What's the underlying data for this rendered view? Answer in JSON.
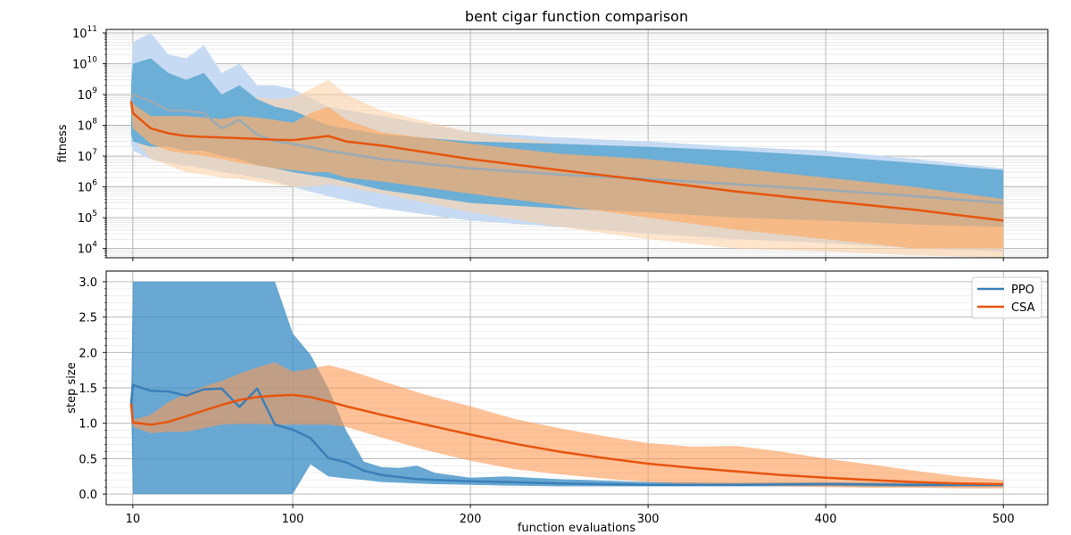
{
  "chart_data": [
    {
      "type": "line",
      "title": "bent cigar function comparison",
      "ylabel": "fitness",
      "xlabel": "",
      "yscale": "log",
      "xlim": [
        -5,
        525
      ],
      "ylim": [
        5000,
        130000000000
      ],
      "yticks": [
        {
          "value": 10000,
          "base": "10",
          "exp": "4"
        },
        {
          "value": 100000,
          "base": "10",
          "exp": "5"
        },
        {
          "value": 1000000,
          "base": "10",
          "exp": "6"
        },
        {
          "value": 10000000,
          "base": "10",
          "exp": "7"
        },
        {
          "value": 100000000,
          "base": "10",
          "exp": "8"
        },
        {
          "value": 1000000000,
          "base": "10",
          "exp": "9"
        },
        {
          "value": 10000000000,
          "base": "10",
          "exp": "10"
        },
        {
          "value": 100000000000,
          "base": "10",
          "exp": "11"
        }
      ],
      "xticks": [
        10,
        100,
        200,
        300,
        400,
        500
      ],
      "grid": true,
      "series": [
        {
          "name": "PPO",
          "color": "#3a7fb8",
          "x": [
            9,
            10,
            20,
            30,
            40,
            50,
            60,
            70,
            80,
            90,
            100,
            120,
            150,
            200,
            250,
            300,
            350,
            400,
            450,
            500
          ],
          "y": [
            600000000,
            1000000000,
            600000000,
            300000000,
            300000000,
            250000000,
            80000000,
            150000000,
            50000000,
            30000000,
            25000000,
            15000000,
            8000000,
            4000000,
            2500000,
            1800000,
            1200000,
            800000,
            500000,
            300000
          ],
          "band_inner": {
            "lower": [
              50000000,
              30000000,
              20000000,
              20000000,
              15000000,
              15000000,
              10000000,
              8000000,
              5000000,
              4000000,
              3000000,
              2000000,
              800000,
              300000,
              200000,
              150000,
              100000,
              80000,
              60000,
              50000
            ],
            "upper": [
              2000000000,
              10000000000,
              15000000000,
              5000000000,
              3000000000,
              5000000000,
              1000000000,
              2000000000,
              700000000,
              400000000,
              300000000,
              100000000,
              50000000,
              30000000,
              25000000,
              20000000,
              15000000,
              10000000,
              6000000,
              3500000
            ]
          },
          "band_outer": {
            "lower": [
              25000000,
              15000000,
              8000000,
              6000000,
              5000000,
              4000000,
              3000000,
              2500000,
              2000000,
              1500000,
              1000000,
              500000,
              200000,
              80000,
              50000,
              30000,
              20000,
              15000,
              10000,
              8000
            ],
            "upper": [
              5000000000,
              50000000000,
              100000000000,
              20000000000,
              15000000000,
              40000000000,
              5000000000,
              10000000000,
              2000000000,
              2000000000,
              1500000000,
              400000000,
              200000000,
              60000000,
              40000000,
              30000000,
              20000000,
              15000000,
              8000000,
              4000000
            ]
          }
        },
        {
          "name": "CSA",
          "color": "#e6550d",
          "x": [
            9,
            10,
            20,
            30,
            40,
            50,
            60,
            70,
            80,
            90,
            100,
            110,
            120,
            130,
            150,
            200,
            250,
            300,
            350,
            400,
            450,
            500
          ],
          "y": [
            600000000,
            250000000,
            80000000,
            55000000,
            45000000,
            42000000,
            40000000,
            38000000,
            36000000,
            34000000,
            33000000,
            38000000,
            45000000,
            30000000,
            22000000,
            8000000,
            3500000,
            1600000,
            700000,
            350000,
            180000,
            80000
          ],
          "band_inner": {
            "lower": [
              300000000,
              80000000,
              25000000,
              15000000,
              12000000,
              10000000,
              8000000,
              6000000,
              5000000,
              4000000,
              3500000,
              3000000,
              3000000,
              2000000,
              1500000,
              600000,
              250000,
              100000,
              40000,
              20000,
              10000,
              10000
            ],
            "upper": [
              1000000000,
              500000000,
              200000000,
              200000000,
              200000000,
              180000000,
              160000000,
              200000000,
              180000000,
              150000000,
              120000000,
              250000000,
              400000000,
              150000000,
              60000000,
              25000000,
              12000000,
              8000000,
              4000000,
              2000000,
              1000000,
              400000
            ]
          },
          "band_outer": {
            "lower": [
              200000000,
              40000000,
              8000000,
              5000000,
              3000000,
              2500000,
              2000000,
              1800000,
              1500000,
              1200000,
              1000000,
              1000000,
              1200000,
              1000000,
              600000,
              150000,
              50000,
              20000,
              10000,
              8000,
              6000,
              5000
            ],
            "upper": [
              1500000000,
              1200000000,
              700000000,
              600000000,
              800000000,
              700000000,
              600000000,
              900000000,
              800000000,
              700000000,
              800000000,
              1500000000,
              3000000000,
              1000000000,
              300000000,
              60000000,
              25000000,
              15000000,
              8000000,
              4000000,
              2000000,
              800000
            ]
          }
        }
      ]
    },
    {
      "type": "line",
      "title": "",
      "ylabel": "step size",
      "xlabel": "function evaluations",
      "yscale": "linear",
      "xlim": [
        -5,
        525
      ],
      "ylim": [
        -0.15,
        3.15
      ],
      "yticks": [
        "0.0",
        "0.5",
        "1.0",
        "1.5",
        "2.0",
        "2.5",
        "3.0"
      ],
      "xticks": [
        10,
        100,
        200,
        300,
        400,
        500
      ],
      "grid": true,
      "legend": "top-right",
      "series": [
        {
          "name": "PPO",
          "color": "#3a7fb8",
          "x": [
            9,
            10,
            20,
            30,
            40,
            50,
            60,
            70,
            80,
            90,
            100,
            110,
            120,
            130,
            140,
            150,
            160,
            170,
            180,
            200,
            220,
            250,
            300,
            350,
            400,
            450,
            500
          ],
          "y": [
            1.28,
            1.54,
            1.46,
            1.45,
            1.39,
            1.48,
            1.49,
            1.23,
            1.49,
            0.98,
            0.91,
            0.79,
            0.51,
            0.45,
            0.33,
            0.27,
            0.24,
            0.21,
            0.2,
            0.18,
            0.17,
            0.15,
            0.13,
            0.13,
            0.14,
            0.13,
            0.13
          ],
          "band": {
            "lower": [
              1.28,
              0.0,
              0.0,
              0.0,
              0.0,
              0.0,
              0.0,
              0.0,
              0.0,
              0.0,
              0.0,
              0.42,
              0.25,
              0.22,
              0.2,
              0.17,
              0.16,
              0.15,
              0.14,
              0.13,
              0.12,
              0.11,
              0.11,
              0.11,
              0.11,
              0.1,
              0.1
            ],
            "upper": [
              1.28,
              3.0,
              3.0,
              3.0,
              3.0,
              3.0,
              3.0,
              3.0,
              3.0,
              3.0,
              2.27,
              1.97,
              1.5,
              0.9,
              0.46,
              0.38,
              0.37,
              0.4,
              0.3,
              0.23,
              0.25,
              0.21,
              0.17,
              0.16,
              0.17,
              0.16,
              0.15
            ]
          }
        },
        {
          "name": "CSA",
          "color": "#e6550d",
          "x": [
            9,
            10,
            20,
            30,
            40,
            50,
            60,
            70,
            80,
            90,
            100,
            110,
            120,
            130,
            150,
            175,
            200,
            225,
            250,
            275,
            300,
            325,
            350,
            375,
            400,
            425,
            450,
            475,
            500
          ],
          "y": [
            1.28,
            1.01,
            0.98,
            1.02,
            1.1,
            1.18,
            1.26,
            1.33,
            1.37,
            1.39,
            1.4,
            1.37,
            1.31,
            1.24,
            1.12,
            0.98,
            0.84,
            0.71,
            0.6,
            0.51,
            0.43,
            0.37,
            0.32,
            0.27,
            0.23,
            0.2,
            0.17,
            0.15,
            0.14
          ],
          "band": {
            "lower": [
              1.28,
              0.95,
              0.86,
              0.88,
              0.88,
              0.93,
              0.98,
              0.99,
              0.99,
              0.98,
              0.98,
              0.98,
              0.98,
              0.95,
              0.8,
              0.62,
              0.47,
              0.35,
              0.28,
              0.22,
              0.17,
              0.14,
              0.12,
              0.11,
              0.1,
              0.09,
              0.09,
              0.08,
              0.08
            ],
            "upper": [
              1.28,
              1.05,
              1.12,
              1.3,
              1.42,
              1.52,
              1.6,
              1.7,
              1.79,
              1.86,
              1.73,
              1.77,
              1.82,
              1.76,
              1.6,
              1.4,
              1.24,
              1.06,
              0.93,
              0.82,
              0.72,
              0.67,
              0.68,
              0.6,
              0.5,
              0.42,
              0.33,
              0.25,
              0.2
            ]
          }
        }
      ]
    }
  ]
}
